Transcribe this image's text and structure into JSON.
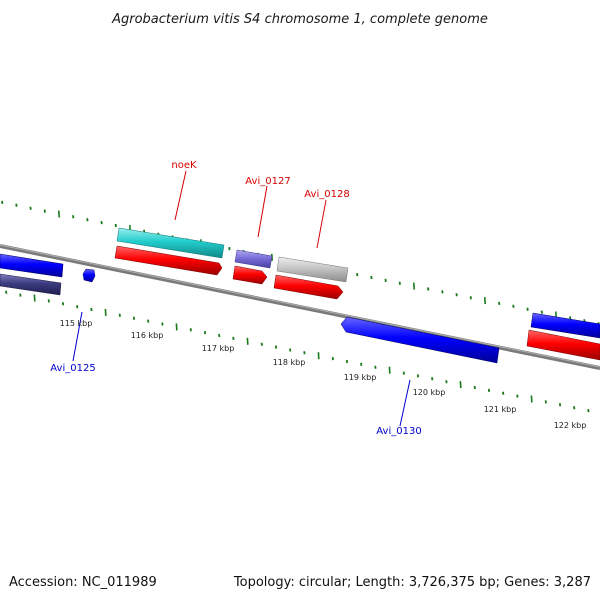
{
  "title": "Agrobacterium vitis S4 chromosome 1, complete genome",
  "footer": {
    "accession": "Accession: NC_011989",
    "summary": "Topology: circular; Length: 3,726,375 bp; Genes: 3,287"
  },
  "scale_labels": [
    "115 kbp",
    "116 kbp",
    "117 kbp",
    "118 kbp",
    "119 kbp",
    "120 kbp",
    "121 kbp",
    "122 kbp"
  ],
  "gene_labels": {
    "noeK": "noeK",
    "avi0127": "Avi_0127",
    "avi0128": "Avi_0128",
    "avi0125": "Avi_0125",
    "avi0130": "Avi_0130"
  },
  "colors": {
    "label_red": "#d40000",
    "label_blue": "#0000cc",
    "backbone": "#808080",
    "tick_green": "#1a7a1a",
    "cds_red": "#ff0000",
    "cds_blue": "#0000ff",
    "cds_cyan": "#33cccc",
    "cds_slate": "#7a6fd8",
    "cds_gray": "#c0c0c0",
    "cds_navy": "#3b3b80"
  }
}
